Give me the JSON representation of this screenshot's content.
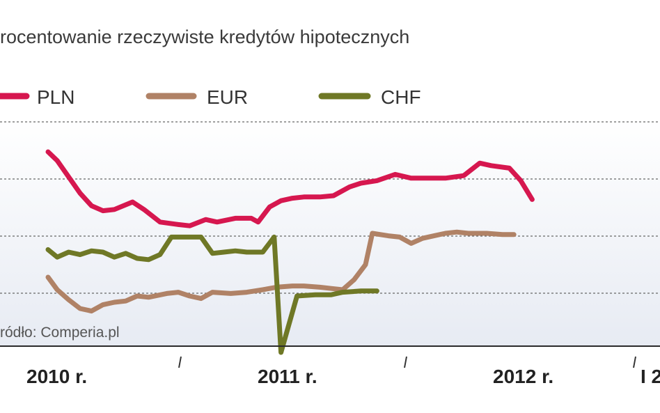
{
  "chart_data": {
    "type": "line",
    "title": "rocentowanie rzeczywiste kredytów hipotecznych",
    "source": "ródło: Comperia.pl",
    "x_labels": [
      "2010 r.",
      "2011 r.",
      "2012 r.",
      "I 2"
    ],
    "legend_position": "top-left",
    "grid": true,
    "series": [
      {
        "name": "PLN",
        "color": "#d6174f",
        "points": [
          [
            2009.93,
            7.4
          ],
          [
            2009.97,
            7.33
          ],
          [
            2010.02,
            7.2
          ],
          [
            2010.07,
            7.07
          ],
          [
            2010.12,
            6.97
          ],
          [
            2010.17,
            6.93
          ],
          [
            2010.22,
            6.94
          ],
          [
            2010.3,
            7.0
          ],
          [
            2010.35,
            6.94
          ],
          [
            2010.42,
            6.84
          ],
          [
            2010.5,
            6.82
          ],
          [
            2010.55,
            6.81
          ],
          [
            2010.62,
            6.86
          ],
          [
            2010.67,
            6.84
          ],
          [
            2010.75,
            6.87
          ],
          [
            2010.82,
            6.87
          ],
          [
            2010.85,
            6.84
          ],
          [
            2010.9,
            6.96
          ],
          [
            2010.95,
            7.01
          ],
          [
            2011.0,
            7.03
          ],
          [
            2011.05,
            7.04
          ],
          [
            2011.12,
            7.04
          ],
          [
            2011.18,
            7.05
          ],
          [
            2011.25,
            7.12
          ],
          [
            2011.3,
            7.15
          ],
          [
            2011.37,
            7.17
          ],
          [
            2011.45,
            7.22
          ],
          [
            2011.52,
            7.19
          ],
          [
            2011.6,
            7.19
          ],
          [
            2011.67,
            7.19
          ],
          [
            2011.75,
            7.21
          ],
          [
            2011.82,
            7.31
          ],
          [
            2011.87,
            7.29
          ],
          [
            2011.95,
            7.27
          ],
          [
            2012.0,
            7.17
          ],
          [
            2012.05,
            7.02
          ]
        ]
      },
      {
        "name": "EUR",
        "color": "#b08266",
        "points": [
          [
            2009.93,
            6.4
          ],
          [
            2009.97,
            6.3
          ],
          [
            2010.02,
            6.22
          ],
          [
            2010.07,
            6.15
          ],
          [
            2010.12,
            6.13
          ],
          [
            2010.17,
            6.18
          ],
          [
            2010.22,
            6.2
          ],
          [
            2010.27,
            6.21
          ],
          [
            2010.32,
            6.25
          ],
          [
            2010.37,
            6.24
          ],
          [
            2010.45,
            6.27
          ],
          [
            2010.5,
            6.28
          ],
          [
            2010.55,
            6.25
          ],
          [
            2010.6,
            6.23
          ],
          [
            2010.65,
            6.28
          ],
          [
            2010.73,
            6.27
          ],
          [
            2010.8,
            6.28
          ],
          [
            2010.87,
            6.3
          ],
          [
            2010.93,
            6.32
          ],
          [
            2011.0,
            6.33
          ],
          [
            2011.05,
            6.33
          ],
          [
            2011.12,
            6.32
          ],
          [
            2011.17,
            6.31
          ],
          [
            2011.22,
            6.3
          ],
          [
            2011.27,
            6.38
          ],
          [
            2011.32,
            6.5
          ],
          [
            2011.35,
            6.75
          ],
          [
            2011.42,
            6.73
          ],
          [
            2011.47,
            6.72
          ],
          [
            2011.52,
            6.67
          ],
          [
            2011.57,
            6.71
          ],
          [
            2011.62,
            6.73
          ],
          [
            2011.67,
            6.75
          ],
          [
            2011.72,
            6.76
          ],
          [
            2011.77,
            6.75
          ],
          [
            2011.85,
            6.75
          ],
          [
            2011.92,
            6.74
          ],
          [
            2011.97,
            6.74
          ]
        ]
      },
      {
        "name": "CHF",
        "color": "#6f7826",
        "points": [
          [
            2009.93,
            6.62
          ],
          [
            2009.97,
            6.56
          ],
          [
            2010.02,
            6.6
          ],
          [
            2010.07,
            6.58
          ],
          [
            2010.12,
            6.61
          ],
          [
            2010.17,
            6.6
          ],
          [
            2010.22,
            6.56
          ],
          [
            2010.27,
            6.59
          ],
          [
            2010.32,
            6.55
          ],
          [
            2010.37,
            6.54
          ],
          [
            2010.42,
            6.58
          ],
          [
            2010.47,
            6.72
          ],
          [
            2010.55,
            6.72
          ],
          [
            2010.6,
            6.72
          ],
          [
            2010.65,
            6.59
          ],
          [
            2010.7,
            6.6
          ],
          [
            2010.75,
            6.61
          ],
          [
            2010.8,
            6.6
          ],
          [
            2010.87,
            6.6
          ],
          [
            2010.92,
            6.72
          ],
          [
            2010.95,
            5.8
          ],
          [
            2011.02,
            6.25
          ],
          [
            2011.1,
            6.26
          ],
          [
            2011.17,
            6.26
          ],
          [
            2011.22,
            6.28
          ],
          [
            2011.3,
            6.29
          ],
          [
            2011.37,
            6.29
          ]
        ]
      }
    ]
  }
}
